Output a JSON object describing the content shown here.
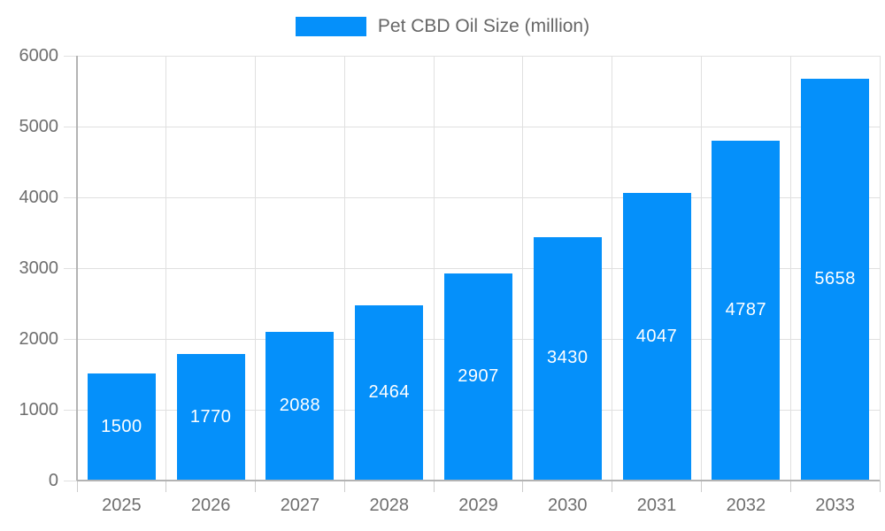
{
  "chart": {
    "legend": {
      "label": "Pet CBD Oil Size (million)",
      "position": "top-center"
    }
  },
  "chart_data": {
    "type": "bar",
    "title": "Pet CBD Oil Size (million)",
    "series_name": "Pet CBD Oil Size (million)",
    "categories": [
      "2025",
      "2026",
      "2027",
      "2028",
      "2029",
      "2030",
      "2031",
      "2032",
      "2033"
    ],
    "values": [
      1500,
      1770,
      2088,
      2464,
      2907,
      3430,
      4047,
      4787,
      5658
    ],
    "bar_labels": [
      1500,
      1770,
      2088,
      2464,
      2907,
      3430,
      4047,
      4787,
      5658
    ],
    "xlabel": "",
    "ylabel": "",
    "ylim": [
      0,
      6000
    ],
    "yticks": [
      0,
      1000,
      2000,
      3000,
      4000,
      5000,
      6000
    ],
    "grid": true,
    "legend_position": "top-center",
    "colors": {
      "bar": "#0590FA",
      "bar_label_text": "#FFFFFF",
      "axis_text": "#6E6E6E",
      "legend_text": "#666666",
      "gridline": "#E0E0E0",
      "tick": "#CCCCCC",
      "axis_line": "#B3B3B3",
      "background": "#FFFFFF"
    }
  }
}
